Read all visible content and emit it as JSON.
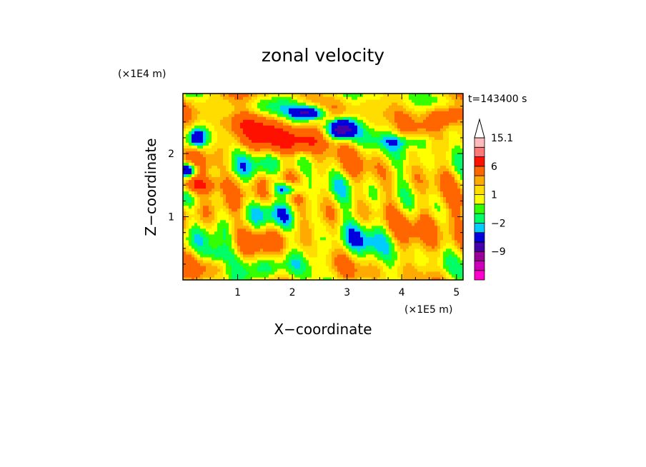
{
  "chart_data": {
    "type": "heatmap",
    "title": "zonal velocity",
    "xlabel": "X−coordinate",
    "ylabel": "Z−coordinate",
    "x_unit": "(×1E5 m)",
    "y_unit": "(×1E4 m)",
    "time_label": "t=143400 s",
    "xlim": [
      0,
      5.12
    ],
    "ylim": [
      0,
      2.95
    ],
    "x_ticks": [
      1,
      2,
      3,
      4,
      5
    ],
    "y_ticks": [
      1,
      2
    ],
    "colorbar": {
      "levels": [
        -15,
        -12,
        -9,
        -6,
        -3,
        -2,
        -1,
        0,
        1,
        2,
        3,
        6,
        9,
        12,
        15.1
      ],
      "colors": [
        "#ff00cc",
        "#cc00bb",
        "#990099",
        "#4400aa",
        "#0000dd",
        "#00ccff",
        "#00ff66",
        "#33ff00",
        "#ffff00",
        "#ffdd00",
        "#ffaa00",
        "#ff6600",
        "#ff1100",
        "#ff7777",
        "#ffbbbb"
      ],
      "tick_labels": [
        {
          "level": 15.1,
          "label": "15.1"
        },
        {
          "level": 6,
          "label": "6"
        },
        {
          "level": 1,
          "label": "1"
        },
        {
          "level": -2,
          "label": "−2"
        },
        {
          "level": -9,
          "label": "−9"
        }
      ],
      "extend": "max"
    },
    "field_features": [
      {
        "x": 2.9,
        "z": 2.4,
        "value": -10,
        "sx": 0.18,
        "sz": 0.12
      },
      {
        "x": 2.3,
        "z": 2.65,
        "value": -8,
        "sx": 0.2,
        "sz": 0.08
      },
      {
        "x": 1.9,
        "z": 1.45,
        "value": -7,
        "sx": 0.2,
        "sz": 0.08
      },
      {
        "x": 0.1,
        "z": 1.75,
        "value": -8,
        "sx": 0.12,
        "sz": 0.08
      },
      {
        "x": 0.25,
        "z": 2.25,
        "value": -6,
        "sx": 0.1,
        "sz": 0.1
      },
      {
        "x": 0.2,
        "z": 1.5,
        "value": 7,
        "sx": 0.3,
        "sz": 0.1
      },
      {
        "x": 2.2,
        "z": 2.2,
        "value": 6,
        "sx": 0.4,
        "sz": 0.15
      },
      {
        "x": 1.2,
        "z": 2.5,
        "value": 5,
        "sx": 0.4,
        "sz": 0.15
      },
      {
        "x": 4.8,
        "z": 2.6,
        "value": 6,
        "sx": 0.25,
        "sz": 0.12
      },
      {
        "x": 3.3,
        "z": 0.7,
        "value": -2,
        "sx": 0.5,
        "sz": 0.25
      },
      {
        "x": 4.5,
        "z": 0.9,
        "value": 3,
        "sx": 0.4,
        "sz": 0.25
      },
      {
        "x": 4.1,
        "z": 2.2,
        "value": -3,
        "sx": 0.35,
        "sz": 0.08
      },
      {
        "x": 0.6,
        "z": 0.4,
        "value": -3,
        "sx": 0.2,
        "sz": 0.1
      }
    ]
  }
}
